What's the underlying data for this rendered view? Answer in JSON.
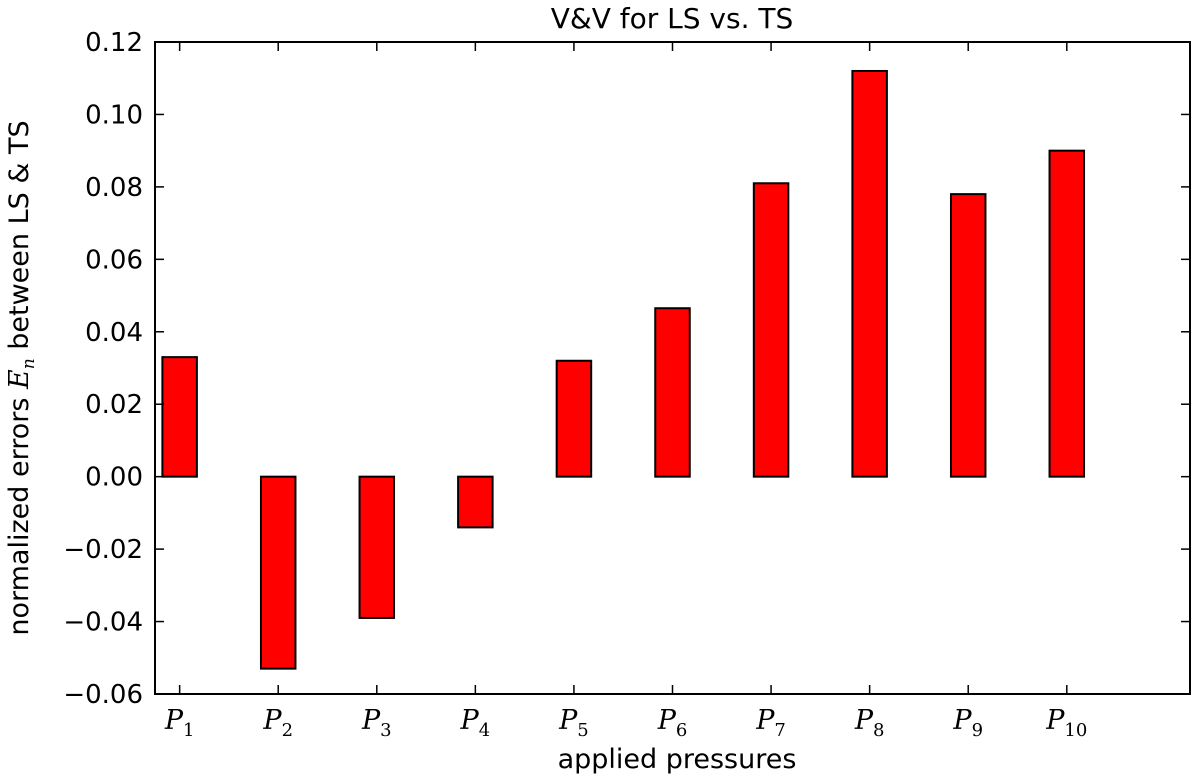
{
  "chart_data": {
    "type": "bar",
    "title": "V&V for LS vs. TS",
    "xlabel": "applied pressures",
    "ylabel": {
      "prefix": "normalized errors ",
      "math_main": "E",
      "math_sub": "n",
      "suffix": " between LS & TS"
    },
    "categories": [
      {
        "main": "P",
        "sub": "1"
      },
      {
        "main": "P",
        "sub": "2"
      },
      {
        "main": "P",
        "sub": "3"
      },
      {
        "main": "P",
        "sub": "4"
      },
      {
        "main": "P",
        "sub": "5"
      },
      {
        "main": "P",
        "sub": "6"
      },
      {
        "main": "P",
        "sub": "7"
      },
      {
        "main": "P",
        "sub": "8"
      },
      {
        "main": "P",
        "sub": "9"
      },
      {
        "main": "P",
        "sub": "10"
      }
    ],
    "values": [
      0.033,
      -0.053,
      -0.039,
      -0.014,
      0.032,
      0.0465,
      0.081,
      0.112,
      0.078,
      0.09
    ],
    "ylim": [
      -0.06,
      0.12
    ],
    "yticks": [
      "−0.06",
      "−0.04",
      "−0.02",
      "0.00",
      "0.02",
      "0.04",
      "0.06",
      "0.08",
      "0.10",
      "0.12"
    ],
    "bar_color": "#ff0000",
    "edge_color": "#000000",
    "grid": false,
    "legend": "none"
  }
}
